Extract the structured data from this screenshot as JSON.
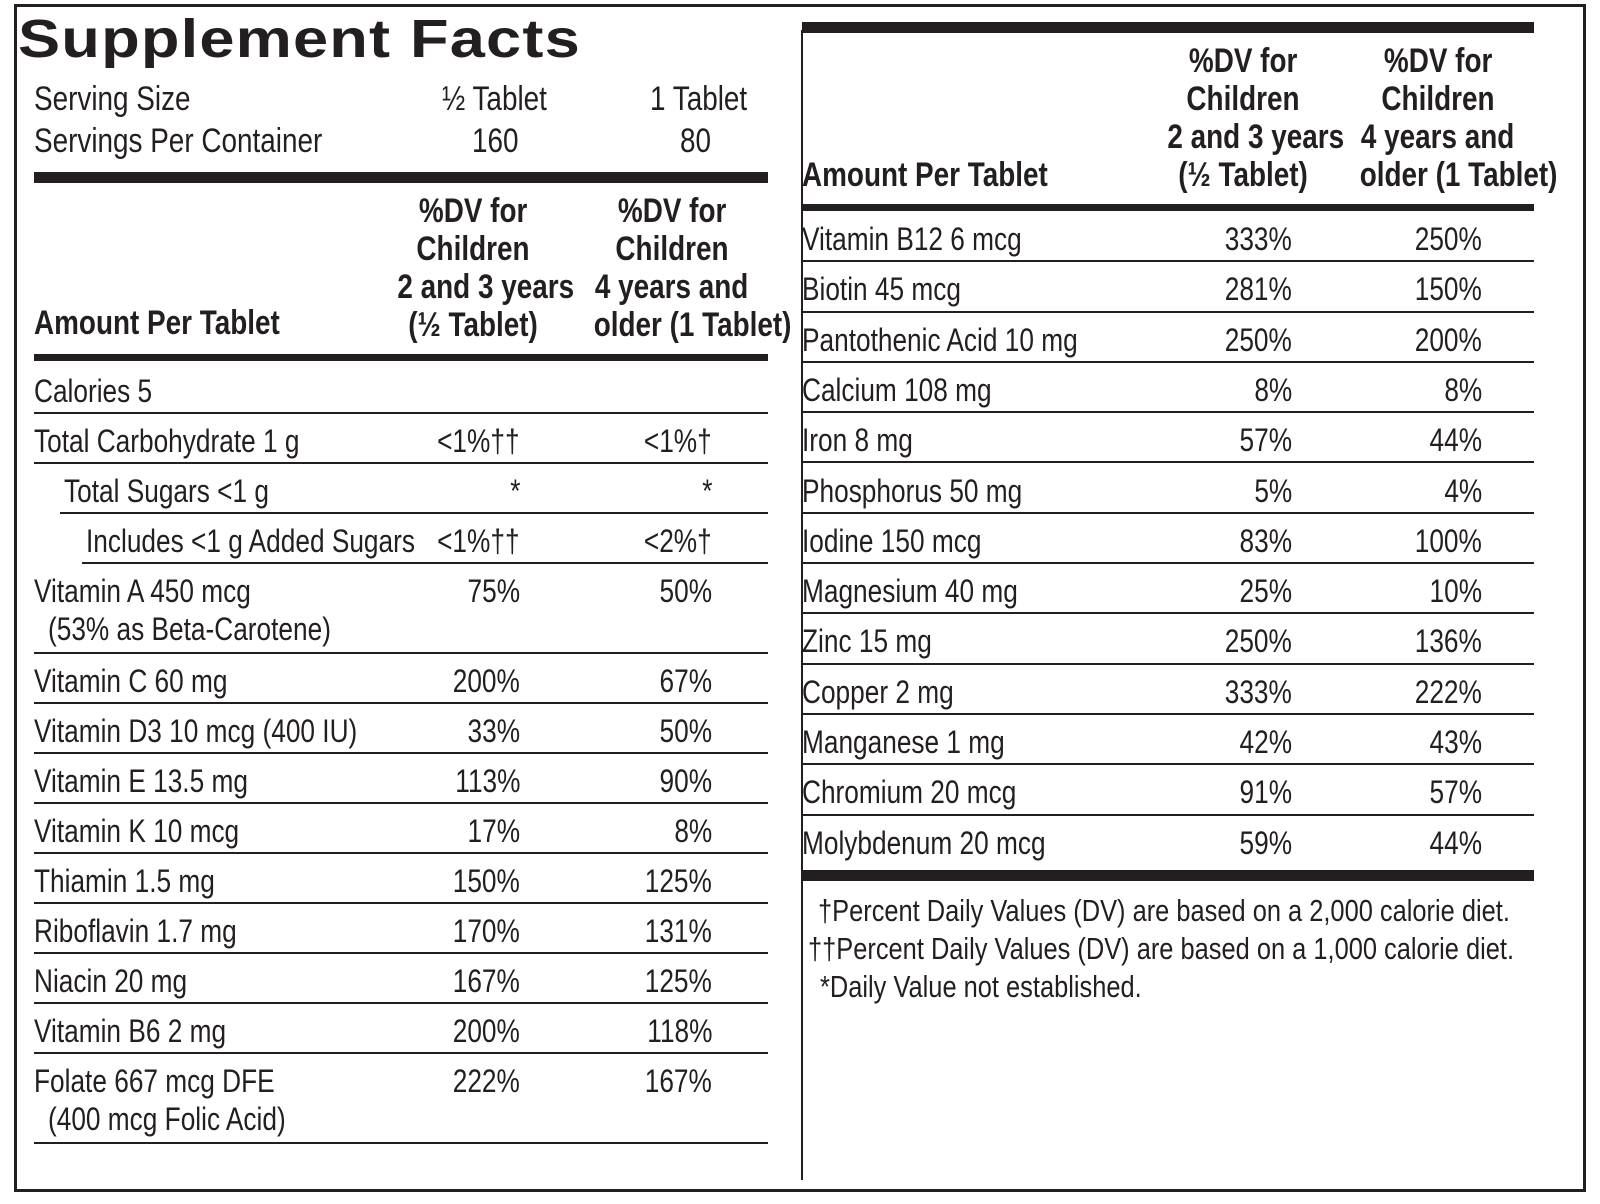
{
  "title": "Supplement Facts",
  "serving": {
    "size_label": "Serving Size",
    "size_a": "½ Tablet",
    "size_b": "1 Tablet",
    "per_container_label": "Servings Per Container",
    "per_container_a": "160",
    "per_container_b": "80"
  },
  "headers": {
    "amount": "Amount Per Tablet",
    "col_a": [
      "%DV for",
      "Children",
      "2 and 3 years",
      "(½ Tablet)"
    ],
    "col_b": [
      "%DV for",
      "Children",
      "4 years and",
      "older (1 Tablet)"
    ]
  },
  "left_rows": [
    {
      "name": "Calories 5",
      "sub": "",
      "a": "",
      "b": "",
      "indent": 0
    },
    {
      "name": "Total Carbohydrate 1 g",
      "sub": "",
      "a": "<1%††",
      "b": "<1%†",
      "indent": 0
    },
    {
      "name": "Total Sugars <1 g",
      "sub": "",
      "a": "*",
      "b": "*",
      "indent": 1
    },
    {
      "name": "Includes <1 g Added Sugars",
      "sub": "",
      "a": "<1%††",
      "b": "<2%†",
      "indent": 2
    },
    {
      "name": "Vitamin A 450 mcg",
      "sub": "(53% as Beta-Carotene)",
      "a": "75%",
      "b": "50%",
      "indent": 0
    },
    {
      "name": "Vitamin C 60 mg",
      "sub": "",
      "a": "200%",
      "b": "67%",
      "indent": 0
    },
    {
      "name": "Vitamin D3 10 mcg (400 IU)",
      "sub": "",
      "a": "33%",
      "b": "50%",
      "indent": 0
    },
    {
      "name": "Vitamin E 13.5 mg",
      "sub": "",
      "a": "113%",
      "b": "90%",
      "indent": 0
    },
    {
      "name": "Vitamin K 10 mcg",
      "sub": "",
      "a": "17%",
      "b": "8%",
      "indent": 0
    },
    {
      "name": "Thiamin 1.5 mg",
      "sub": "",
      "a": "150%",
      "b": "125%",
      "indent": 0
    },
    {
      "name": "Riboflavin 1.7 mg",
      "sub": "",
      "a": "170%",
      "b": "131%",
      "indent": 0
    },
    {
      "name": "Niacin 20 mg",
      "sub": "",
      "a": "167%",
      "b": "125%",
      "indent": 0
    },
    {
      "name": "Vitamin B6 2 mg",
      "sub": "",
      "a": "200%",
      "b": "118%",
      "indent": 0
    },
    {
      "name": "Folate 667 mcg DFE",
      "sub": "(400 mcg Folic Acid)",
      "a": "222%",
      "b": "167%",
      "indent": 0
    }
  ],
  "right_rows": [
    {
      "name": "Vitamin B12 6 mcg",
      "a": "333%",
      "b": "250%"
    },
    {
      "name": "Biotin 45 mcg",
      "a": "281%",
      "b": "150%"
    },
    {
      "name": "Pantothenic Acid 10 mg",
      "a": "250%",
      "b": "200%"
    },
    {
      "name": "Calcium 108 mg",
      "a": "8%",
      "b": "8%"
    },
    {
      "name": "Iron 8 mg",
      "a": "57%",
      "b": "44%"
    },
    {
      "name": "Phosphorus 50 mg",
      "a": "5%",
      "b": "4%"
    },
    {
      "name": "Iodine 150 mcg",
      "a": "83%",
      "b": "100%"
    },
    {
      "name": "Magnesium 40 mg",
      "a": "25%",
      "b": "10%"
    },
    {
      "name": "Zinc 15 mg",
      "a": "250%",
      "b": "136%"
    },
    {
      "name": "Copper 2 mg",
      "a": "333%",
      "b": "222%"
    },
    {
      "name": "Manganese 1 mg",
      "a": "42%",
      "b": "43%"
    },
    {
      "name": "Chromium 20 mcg",
      "a": "91%",
      "b": "57%"
    },
    {
      "name": "Molybdenum 20 mcg",
      "a": "59%",
      "b": "44%"
    }
  ],
  "footnotes": [
    "†Percent Daily Values (DV) are based on a 2,000 calorie diet.",
    "††Percent Daily Values (DV) are based on a 1,000 calorie diet.",
    "*Daily Value not established."
  ]
}
